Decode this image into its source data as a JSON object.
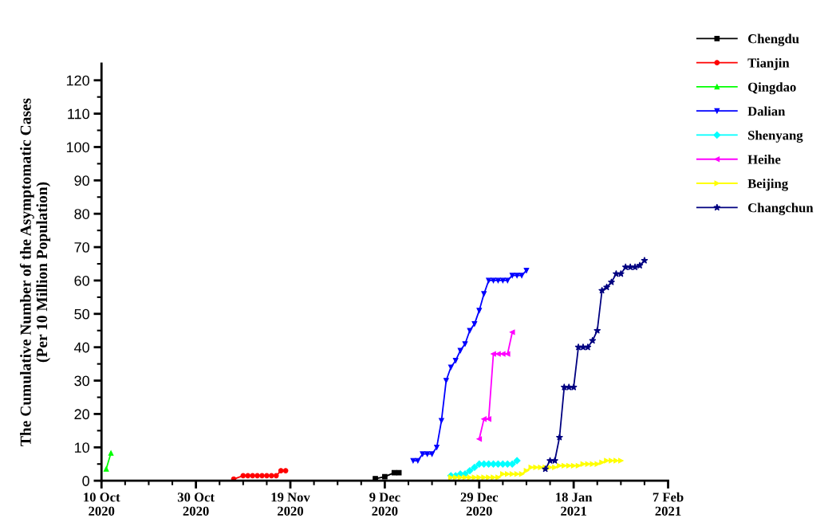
{
  "chart_data": {
    "type": "line",
    "ylabel": "The Cumulative Number of the Asymptomatic Cases\n(Per 10 Million Population)",
    "xlim": [
      "2020-10-10",
      "2021-02-07"
    ],
    "ylim": [
      0,
      125
    ],
    "xticks": [
      {
        "value": "2020-10-10",
        "label": "10 Oct\n2020"
      },
      {
        "value": "2020-10-15",
        "label": null
      },
      {
        "value": "2020-10-20",
        "label": null
      },
      {
        "value": "2020-10-25",
        "label": null
      },
      {
        "value": "2020-10-30",
        "label": "30 Oct\n2020"
      },
      {
        "value": "2020-11-04",
        "label": null
      },
      {
        "value": "2020-11-09",
        "label": null
      },
      {
        "value": "2020-11-14",
        "label": null
      },
      {
        "value": "2020-11-19",
        "label": "19 Nov\n2020"
      },
      {
        "value": "2020-11-24",
        "label": null
      },
      {
        "value": "2020-11-29",
        "label": null
      },
      {
        "value": "2020-12-04",
        "label": null
      },
      {
        "value": "2020-12-09",
        "label": "9 Dec\n2020"
      },
      {
        "value": "2020-12-14",
        "label": null
      },
      {
        "value": "2020-12-19",
        "label": null
      },
      {
        "value": "2020-12-24",
        "label": null
      },
      {
        "value": "2020-12-29",
        "label": "29 Dec\n2020"
      },
      {
        "value": "2021-01-03",
        "label": null
      },
      {
        "value": "2021-01-08",
        "label": null
      },
      {
        "value": "2021-01-13",
        "label": null
      },
      {
        "value": "2021-01-18",
        "label": "18 Jan\n2021"
      },
      {
        "value": "2021-01-23",
        "label": null
      },
      {
        "value": "2021-01-28",
        "label": null
      },
      {
        "value": "2021-02-02",
        "label": null
      },
      {
        "value": "2021-02-07",
        "label": "7 Feb\n2021"
      }
    ],
    "yticks": [
      0,
      {
        "value": 5,
        "label": null
      },
      10,
      {
        "value": 15,
        "label": null
      },
      20,
      {
        "value": 25,
        "label": null
      },
      30,
      {
        "value": 35,
        "label": null
      },
      40,
      {
        "value": 45,
        "label": null
      },
      50,
      {
        "value": 55,
        "label": null
      },
      60,
      {
        "value": 65,
        "label": null
      },
      70,
      {
        "value": 75,
        "label": null
      },
      80,
      {
        "value": 85,
        "label": null
      },
      90,
      {
        "value": 95,
        "label": null
      },
      100,
      {
        "value": 105,
        "label": null
      },
      110,
      {
        "value": 115,
        "label": null
      },
      120
    ],
    "grid": false,
    "legend": "top right",
    "line_style": "solid",
    "series": [
      {
        "name": "Chengdu",
        "color": "#000000",
        "marker": "square",
        "x": [
          "2020-12-07",
          "2020-12-09",
          "2020-12-11",
          "2020-12-12"
        ],
        "values": [
          0.6,
          1.2,
          2.4,
          2.4
        ]
      },
      {
        "name": "Tianjin",
        "color": "#ff0000",
        "marker": "circle",
        "x": [
          "2020-11-07",
          "2020-11-09",
          "2020-11-10",
          "2020-11-11",
          "2020-11-12",
          "2020-11-13",
          "2020-11-14",
          "2020-11-15",
          "2020-11-16",
          "2020-11-17",
          "2020-11-18"
        ],
        "values": [
          0.5,
          1.5,
          1.5,
          1.5,
          1.5,
          1.5,
          1.5,
          1.5,
          1.5,
          3,
          3
        ]
      },
      {
        "name": "Qingdao",
        "color": "#00ff00",
        "marker": "triangle",
        "x": [
          "2020-10-11",
          "2020-10-12"
        ],
        "values": [
          3.5,
          8.3
        ]
      },
      {
        "name": "Dalian",
        "color": "#0000ff",
        "marker": "triangle-down",
        "x": [
          "2020-12-15",
          "2020-12-16",
          "2020-12-17",
          "2020-12-18",
          "2020-12-19",
          "2020-12-20",
          "2020-12-21",
          "2020-12-22",
          "2020-12-23",
          "2020-12-24",
          "2020-12-25",
          "2020-12-26",
          "2020-12-27",
          "2020-12-28",
          "2020-12-29",
          "2020-12-30",
          "2020-12-31",
          "2021-01-01",
          "2021-01-02",
          "2021-01-03",
          "2021-01-04",
          "2021-01-05",
          "2021-01-06",
          "2021-01-07",
          "2021-01-08"
        ],
        "values": [
          6,
          6,
          8,
          8,
          8,
          10,
          18,
          30,
          34,
          36,
          39,
          41,
          45,
          47,
          51,
          56,
          60,
          60,
          60,
          60,
          60,
          61.5,
          61.5,
          61.5,
          63
        ]
      },
      {
        "name": "Shenyang",
        "color": "#00ffff",
        "marker": "diamond",
        "x": [
          "2020-12-23",
          "2020-12-24",
          "2020-12-25",
          "2020-12-26",
          "2020-12-27",
          "2020-12-28",
          "2020-12-29",
          "2020-12-30",
          "2020-12-31",
          "2021-01-01",
          "2021-01-02",
          "2021-01-03",
          "2021-01-04",
          "2021-01-05",
          "2021-01-06"
        ],
        "values": [
          1.5,
          1.5,
          2,
          2,
          3,
          4,
          5,
          5,
          5,
          5,
          5,
          5,
          5,
          5,
          6
        ]
      },
      {
        "name": "Heihe",
        "color": "#ff00ff",
        "marker": "triangle-left",
        "x": [
          "2020-12-29",
          "2020-12-30",
          "2020-12-31",
          "2021-01-01",
          "2021-01-02",
          "2021-01-03",
          "2021-01-04",
          "2021-01-05"
        ],
        "values": [
          12.5,
          18.5,
          18.5,
          38,
          38,
          38,
          38,
          44.5
        ]
      },
      {
        "name": "Beijing",
        "color": "#ffff00",
        "marker": "triangle-right",
        "x": [
          "2020-12-23",
          "2020-12-24",
          "2020-12-25",
          "2020-12-26",
          "2020-12-27",
          "2020-12-28",
          "2020-12-29",
          "2020-12-30",
          "2020-12-31",
          "2021-01-01",
          "2021-01-02",
          "2021-01-03",
          "2021-01-04",
          "2021-01-05",
          "2021-01-06",
          "2021-01-07",
          "2021-01-08",
          "2021-01-09",
          "2021-01-10",
          "2021-01-11",
          "2021-01-12",
          "2021-01-13",
          "2021-01-14",
          "2021-01-15",
          "2021-01-16",
          "2021-01-17",
          "2021-01-18",
          "2021-01-19",
          "2021-01-20",
          "2021-01-21",
          "2021-01-22",
          "2021-01-23",
          "2021-01-24",
          "2021-01-25",
          "2021-01-26",
          "2021-01-27",
          "2021-01-28"
        ],
        "values": [
          1,
          1,
          1,
          1,
          1,
          1,
          1,
          1,
          1,
          1,
          1,
          2,
          2,
          2,
          2,
          2,
          3,
          4,
          4,
          4,
          4,
          4,
          4,
          4.5,
          4.5,
          4.5,
          4.5,
          4.5,
          5,
          5,
          5,
          5,
          5.5,
          6,
          6,
          6,
          6
        ]
      },
      {
        "name": "Changchun",
        "color": "#000080",
        "marker": "star",
        "x": [
          "2021-01-12",
          "2021-01-13",
          "2021-01-14",
          "2021-01-15",
          "2021-01-16",
          "2021-01-17",
          "2021-01-18",
          "2021-01-19",
          "2021-01-20",
          "2021-01-21",
          "2021-01-22",
          "2021-01-23",
          "2021-01-24",
          "2021-01-25",
          "2021-01-26",
          "2021-01-27",
          "2021-01-28",
          "2021-01-29",
          "2021-01-30",
          "2021-01-31",
          "2021-02-01",
          "2021-02-02"
        ],
        "values": [
          3.5,
          6,
          6,
          13,
          28,
          28,
          28,
          40,
          40,
          40,
          42,
          45,
          57,
          58,
          59.5,
          62,
          62,
          64,
          64,
          64,
          64.5,
          66
        ]
      }
    ]
  }
}
